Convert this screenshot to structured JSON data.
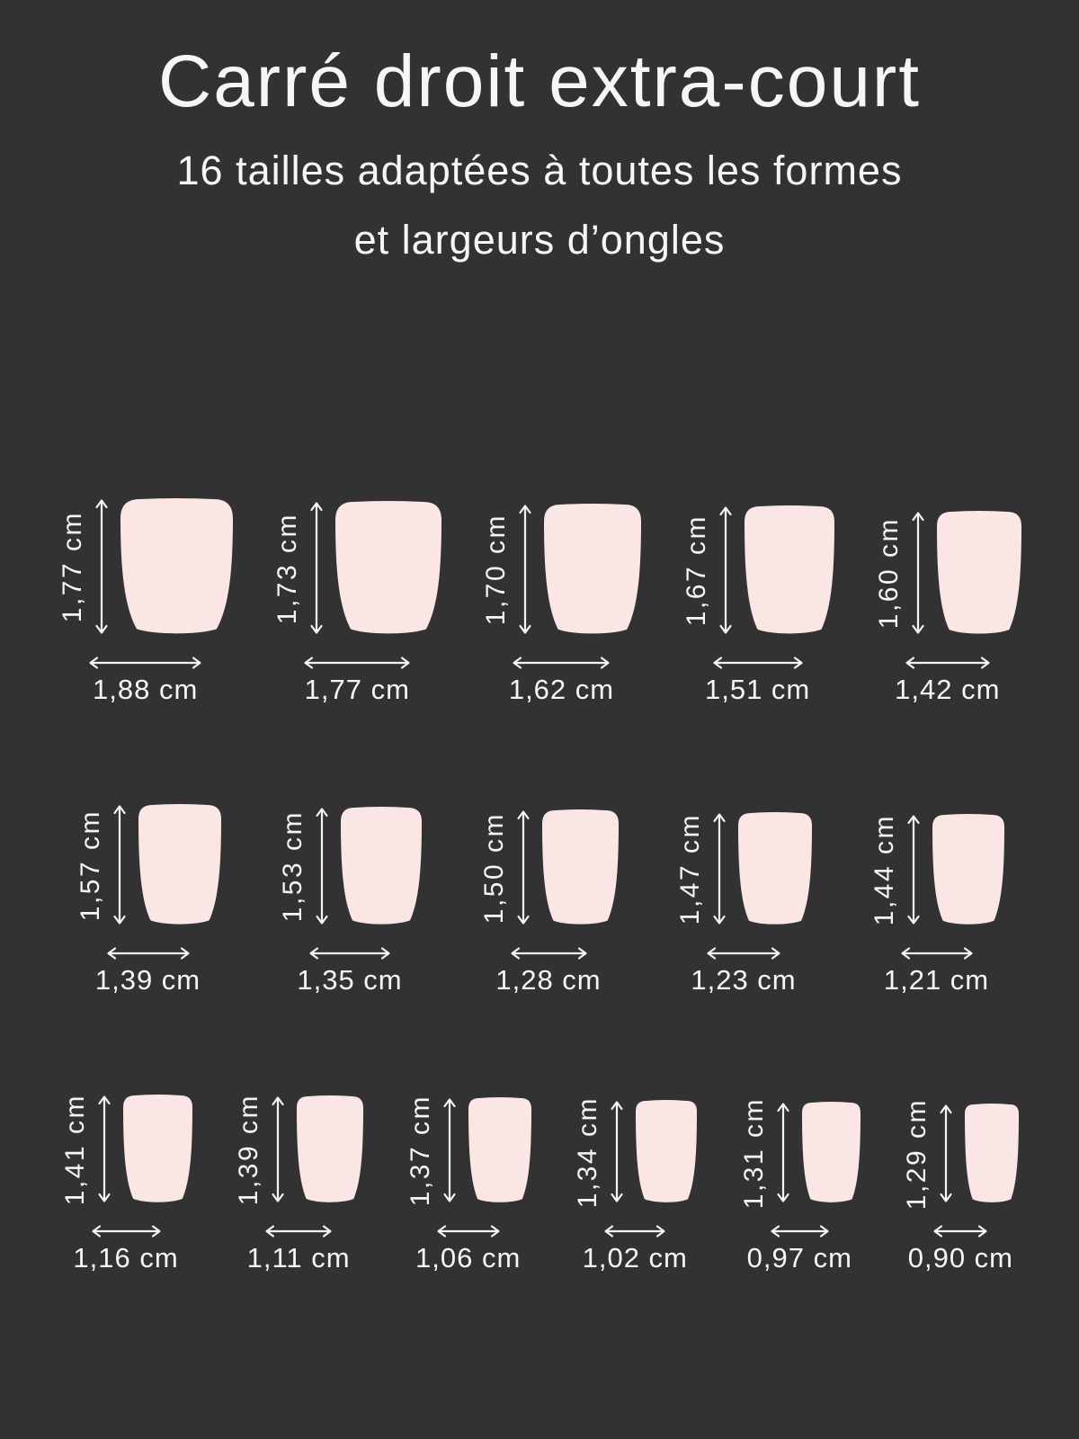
{
  "colors": {
    "background": "#333232",
    "nail": "#fbe6e6",
    "text": "#f7f6f5",
    "arrow": "#f5f4f3"
  },
  "header": {
    "title": "Carré droit extra-court",
    "subtitle_line1": "16 tailles adaptées à toutes les formes",
    "subtitle_line2": "et largeurs d’ongles"
  },
  "size_chart": {
    "type": "diagram",
    "unit": "cm",
    "description": "16 nail sizes, height x width, decimal comma notation",
    "rows": [
      [
        {
          "height_cm": 1.77,
          "width_cm": 1.88,
          "height_label": "1,77 cm",
          "width_label": "1,88 cm"
        },
        {
          "height_cm": 1.73,
          "width_cm": 1.77,
          "height_label": "1,73 cm",
          "width_label": "1,77 cm"
        },
        {
          "height_cm": 1.7,
          "width_cm": 1.62,
          "height_label": "1,70 cm",
          "width_label": "1,62 cm"
        },
        {
          "height_cm": 1.67,
          "width_cm": 1.51,
          "height_label": "1,67 cm",
          "width_label": "1,51 cm"
        },
        {
          "height_cm": 1.6,
          "width_cm": 1.42,
          "height_label": "1,60 cm",
          "width_label": "1,42 cm"
        }
      ],
      [
        {
          "height_cm": 1.57,
          "width_cm": 1.39,
          "height_label": "1,57 cm",
          "width_label": "1,39 cm"
        },
        {
          "height_cm": 1.53,
          "width_cm": 1.35,
          "height_label": "1,53 cm",
          "width_label": "1,35 cm"
        },
        {
          "height_cm": 1.5,
          "width_cm": 1.28,
          "height_label": "1,50 cm",
          "width_label": "1,28 cm"
        },
        {
          "height_cm": 1.47,
          "width_cm": 1.23,
          "height_label": "1,47 cm",
          "width_label": "1,23 cm"
        },
        {
          "height_cm": 1.44,
          "width_cm": 1.21,
          "height_label": "1,44 cm",
          "width_label": "1,21 cm"
        }
      ],
      [
        {
          "height_cm": 1.41,
          "width_cm": 1.16,
          "height_label": "1,41 cm",
          "width_label": "1,16 cm"
        },
        {
          "height_cm": 1.39,
          "width_cm": 1.11,
          "height_label": "1,39 cm",
          "width_label": "1,11 cm"
        },
        {
          "height_cm": 1.37,
          "width_cm": 1.06,
          "height_label": "1,37 cm",
          "width_label": "1,06 cm"
        },
        {
          "height_cm": 1.34,
          "width_cm": 1.02,
          "height_label": "1,34 cm",
          "width_label": "1,02 cm"
        },
        {
          "height_cm": 1.31,
          "width_cm": 0.97,
          "height_label": "1,31 cm",
          "width_label": "0,97 cm"
        },
        {
          "height_cm": 1.29,
          "width_cm": 0.9,
          "height_label": "1,29 cm",
          "width_label": "0,90 cm"
        }
      ]
    ]
  }
}
